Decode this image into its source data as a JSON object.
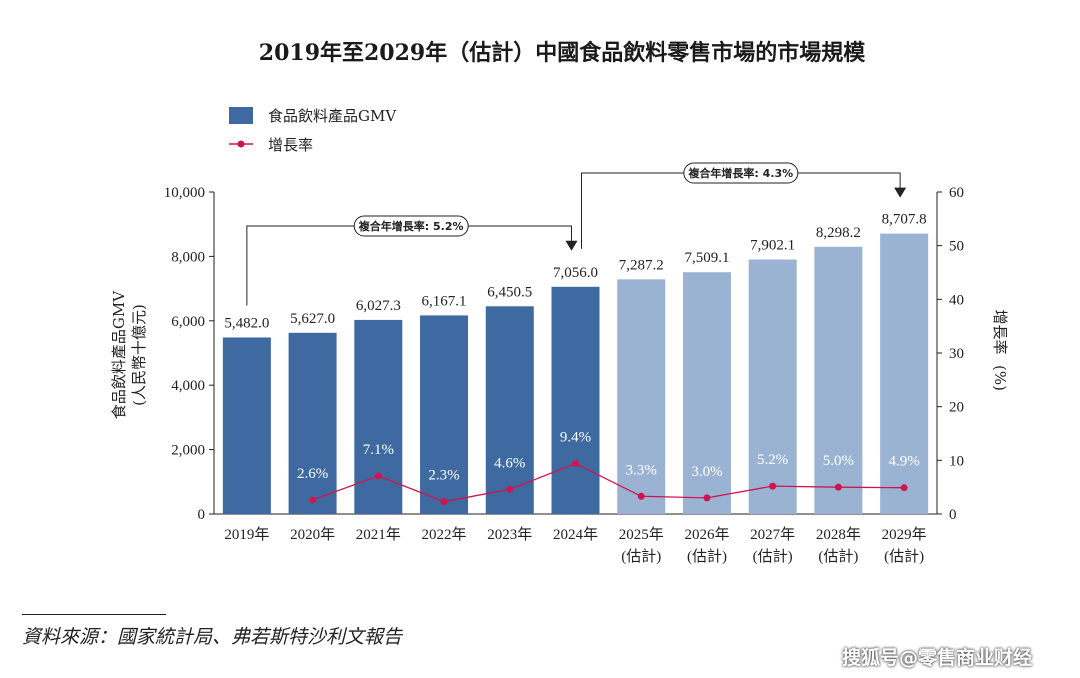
{
  "source": "資料來源：國家統計局、弗若斯特沙利文報告",
  "watermark": "搜狐号@零售商业财经",
  "colors": {
    "actual": "#3f6aa1",
    "forecast": "#9ab3d3",
    "line": "#d0154e",
    "axis": "#222222"
  },
  "chart_data": {
    "type": "bar",
    "title": "2019年至2029年（估計）中國食品飲料零售市場的市場規模",
    "categories": [
      "2019年",
      "2020年",
      "2021年",
      "2022年",
      "2023年",
      "2024年",
      "2025年",
      "2026年",
      "2027年",
      "2028年",
      "2029年"
    ],
    "category_sub": [
      "",
      "",
      "",
      "",
      "",
      "",
      "(估計)",
      "(估計)",
      "(估計)",
      "(估計)",
      "(估計)"
    ],
    "series": [
      {
        "name": "食品飲料產品GMV",
        "axis": "left",
        "values": [
          5482.0,
          5627.0,
          6027.3,
          6167.1,
          6450.5,
          7056.0,
          7287.2,
          7509.1,
          7902.1,
          8298.2,
          8707.8
        ],
        "labels": [
          "5,482.0",
          "5,627.0",
          "6,027.3",
          "6,167.1",
          "6,450.5",
          "7,056.0",
          "7,287.2",
          "7,509.1",
          "7,902.1",
          "8,298.2",
          "8,707.8"
        ],
        "forecast": [
          false,
          false,
          false,
          false,
          false,
          false,
          true,
          true,
          true,
          true,
          true
        ]
      },
      {
        "name": "增長率",
        "axis": "right",
        "type": "line",
        "values": [
          null,
          2.6,
          7.1,
          2.3,
          4.6,
          9.4,
          3.3,
          3.0,
          5.2,
          5.0,
          4.9
        ],
        "labels": [
          "",
          "2.6%",
          "7.1%",
          "2.3%",
          "4.6%",
          "9.4%",
          "3.3%",
          "3.0%",
          "5.2%",
          "5.0%",
          "4.9%"
        ]
      }
    ],
    "ylabel": "食品飲料產品GMV",
    "ylabel_unit": "(人民幣十億元)",
    "ylim": [
      0,
      10000
    ],
    "yticks": [
      "0",
      "2,000",
      "4,000",
      "6,000",
      "8,000",
      "10,000"
    ],
    "y2label": "增長率",
    "y2label_unit": "(%)",
    "y2lim": [
      0,
      60
    ],
    "y2ticks": [
      "0",
      "10",
      "20",
      "30",
      "40",
      "50",
      "60"
    ],
    "legend_position": "top-left",
    "grid": false,
    "annotations": [
      {
        "text": "複合年增長率: 5.2%",
        "from": "2019年",
        "to": "2024年"
      },
      {
        "text": "複合年增長率: 4.3%",
        "from": "2024年",
        "to": "2029年"
      }
    ]
  }
}
